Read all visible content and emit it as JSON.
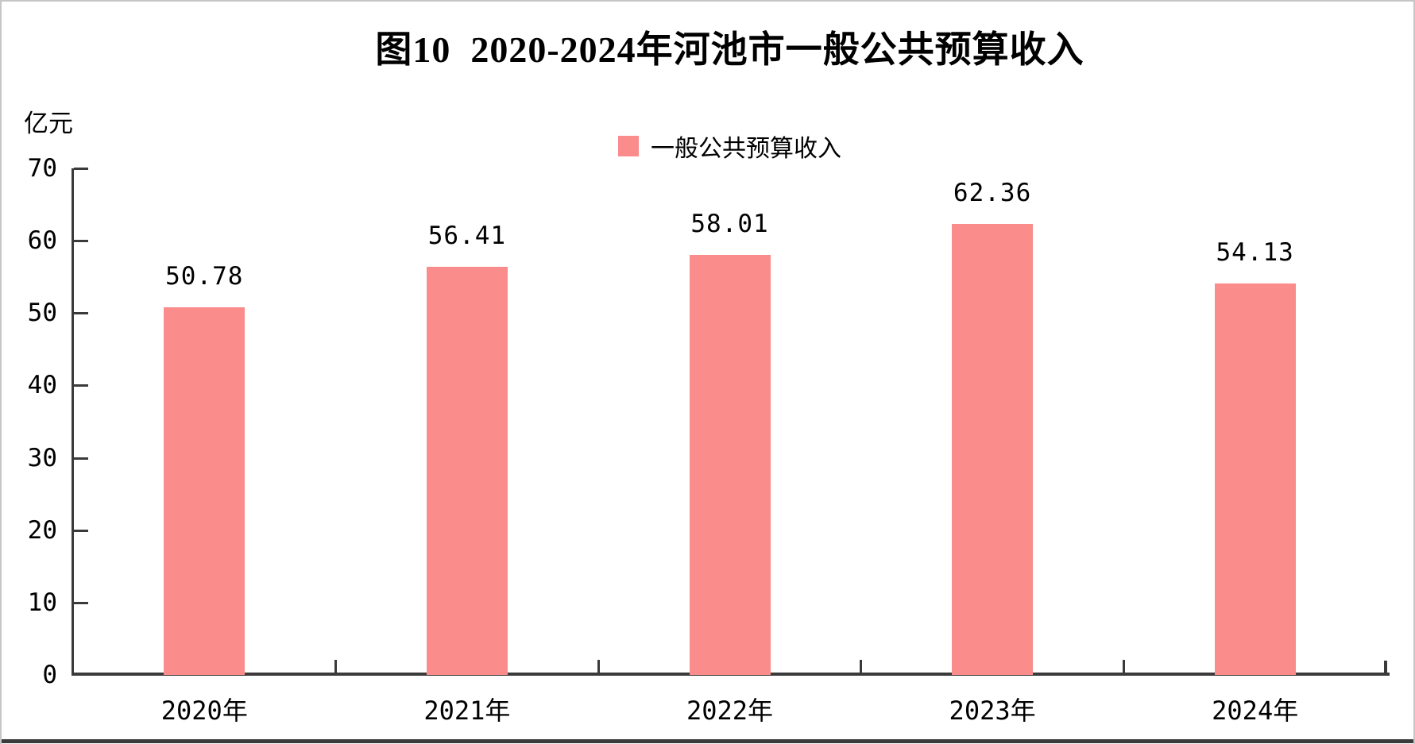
{
  "page": {
    "background": "#ffffff",
    "frame_border_color": "#c6c6c6",
    "bottom_rule_color": "#3b3b3b"
  },
  "chart_data": {
    "type": "bar",
    "title": "图10  2020-2024年河池市一般公共预算收入",
    "unit_label": "亿元",
    "legend": [
      {
        "label": "一般公共预算收入",
        "color": "#FA8C8C"
      }
    ],
    "legend_position": "top-center",
    "categories": [
      "2020年",
      "2021年",
      "2022年",
      "2023年",
      "2024年"
    ],
    "series": [
      {
        "name": "一般公共预算收入",
        "values": [
          50.78,
          56.41,
          58.01,
          62.36,
          54.13
        ]
      }
    ],
    "value_labels": [
      "50.78",
      "56.41",
      "58.01",
      "62.36",
      "54.13"
    ],
    "ylabel": "亿元",
    "xlabel": "",
    "ylim": [
      0,
      70
    ],
    "yticks": [
      0,
      10,
      20,
      30,
      40,
      50,
      60,
      70
    ],
    "ytick_labels": [
      "0",
      "10",
      "20",
      "30",
      "40",
      "50",
      "60",
      "70"
    ],
    "grid": false,
    "bar_color": "#FA8C8C",
    "axis_color": "#3A3A3A",
    "text_color": "#000000"
  }
}
